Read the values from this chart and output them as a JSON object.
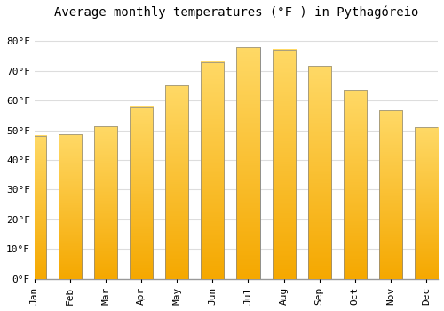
{
  "title": "Average monthly temperatures (°F ) in Pythagóreio",
  "months": [
    "Jan",
    "Feb",
    "Mar",
    "Apr",
    "May",
    "Jun",
    "Jul",
    "Aug",
    "Sep",
    "Oct",
    "Nov",
    "Dec"
  ],
  "values": [
    48.2,
    48.7,
    51.4,
    58.1,
    65.1,
    73.0,
    77.9,
    77.2,
    71.6,
    63.7,
    56.8,
    51.1
  ],
  "bar_color_top": "#FFD966",
  "bar_color_bottom": "#F5A800",
  "bar_edge_color": "#888888",
  "background_color": "#FFFFFF",
  "grid_color": "#DDDDDD",
  "ylim": [
    0,
    85
  ],
  "yticks": [
    0,
    10,
    20,
    30,
    40,
    50,
    60,
    70,
    80
  ],
  "title_fontsize": 10,
  "tick_fontsize": 8,
  "font_family": "monospace"
}
